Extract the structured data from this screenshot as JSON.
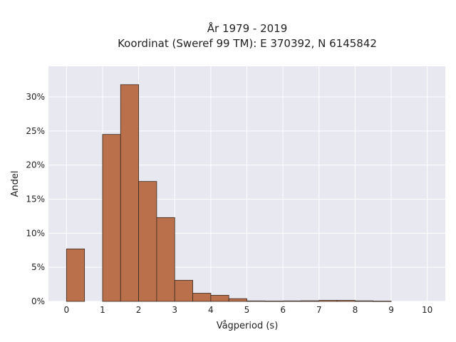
{
  "chart_data": {
    "type": "bar",
    "title": "År 1979 - 2019",
    "subtitle": "Koordinat (Sweref 99 TM): E 370392, N 6145842",
    "xlabel": "Vågperiod (s)",
    "ylabel": "Andel",
    "xlim": [
      -0.5,
      10.5
    ],
    "ylim": [
      0,
      0.345
    ],
    "x_ticks": [
      0,
      1,
      2,
      3,
      4,
      5,
      6,
      7,
      8,
      9,
      10
    ],
    "x_tick_labels": [
      "0",
      "1",
      "2",
      "3",
      "4",
      "5",
      "6",
      "7",
      "8",
      "9",
      "10"
    ],
    "y_ticks": [
      0,
      0.05,
      0.1,
      0.15,
      0.2,
      0.25,
      0.3
    ],
    "y_tick_labels": [
      "0%",
      "5%",
      "10%",
      "15%",
      "20%",
      "25%",
      "30%"
    ],
    "bin_width": 0.5,
    "bins": [
      {
        "x0": 0.0,
        "value": 0.077
      },
      {
        "x0": 0.5,
        "value": 0.0
      },
      {
        "x0": 1.0,
        "value": 0.245
      },
      {
        "x0": 1.5,
        "value": 0.318
      },
      {
        "x0": 2.0,
        "value": 0.176
      },
      {
        "x0": 2.5,
        "value": 0.123
      },
      {
        "x0": 3.0,
        "value": 0.031
      },
      {
        "x0": 3.5,
        "value": 0.012
      },
      {
        "x0": 4.0,
        "value": 0.009
      },
      {
        "x0": 4.5,
        "value": 0.004
      },
      {
        "x0": 5.0,
        "value": 0.0007
      },
      {
        "x0": 5.5,
        "value": 0.0005
      },
      {
        "x0": 6.0,
        "value": 0.0007
      },
      {
        "x0": 6.5,
        "value": 0.0009
      },
      {
        "x0": 7.0,
        "value": 0.0015
      },
      {
        "x0": 7.5,
        "value": 0.0015
      },
      {
        "x0": 8.0,
        "value": 0.0008
      },
      {
        "x0": 8.5,
        "value": 0.0004
      }
    ],
    "grid": true,
    "colors": {
      "bar_fill": "#b9704b",
      "bar_stroke": "#3b2a20",
      "plot_background": "#e8e8f0",
      "grid": "#ffffff",
      "text": "#222222"
    }
  }
}
